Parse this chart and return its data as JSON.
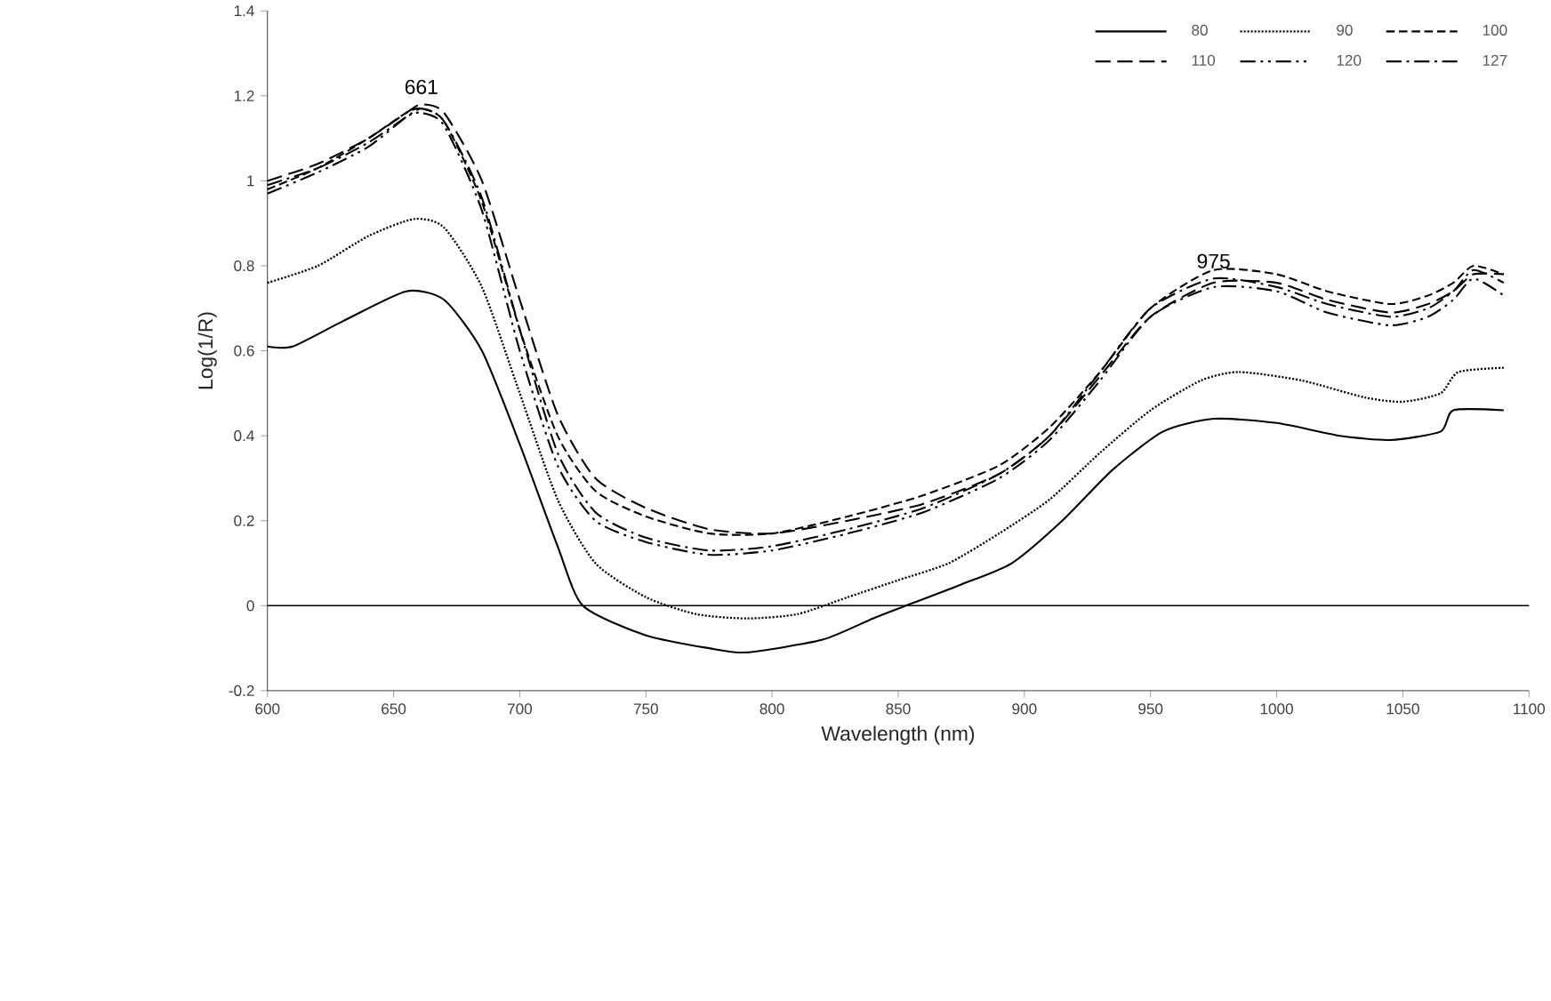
{
  "chart_data": {
    "type": "line",
    "xlabel": "Wavelength (nm)",
    "ylabel": "Log(1/R)",
    "xlim": [
      600,
      1100
    ],
    "xticks": [
      600,
      650,
      700,
      750,
      800,
      850,
      900,
      950,
      1000,
      1050,
      1100
    ],
    "ylim": [
      -0.2,
      1.4
    ],
    "yticks": [
      -0.2,
      0,
      0.2,
      0.4,
      0.6,
      0.8,
      1,
      1.2,
      1.4
    ],
    "grid": false,
    "legend": "top right",
    "ref_lines": [
      {
        "axis": "y",
        "value": 0
      }
    ],
    "annotations": [
      {
        "text": "661",
        "x": 661,
        "y": 1.17
      },
      {
        "text": "975",
        "x": 975,
        "y": 0.76
      }
    ],
    "series": [
      {
        "name": "80",
        "color": "#000000",
        "line_style": "solid",
        "x": [
          600,
          610,
          630,
          655,
          670,
          685,
          700,
          715,
          725,
          750,
          775,
          790,
          820,
          840,
          853,
          875,
          895,
          915,
          935,
          955,
          975,
          1000,
          1025,
          1045,
          1065,
          1070,
          1090
        ],
        "values": [
          0.61,
          0.61,
          0.67,
          0.74,
          0.72,
          0.6,
          0.38,
          0.14,
          0,
          -0.07,
          -0.1,
          -0.11,
          -0.08,
          -0.03,
          0,
          0.05,
          0.1,
          0.2,
          0.32,
          0.41,
          0.44,
          0.43,
          0.4,
          0.39,
          0.41,
          0.46,
          0.46
        ]
      },
      {
        "name": "90",
        "color": "#000000",
        "line_style": "dotted",
        "x": [
          600,
          620,
          640,
          658,
          670,
          685,
          700,
          715,
          730,
          750,
          770,
          790,
          810,
          830,
          850,
          870,
          890,
          910,
          930,
          950,
          970,
          985,
          1010,
          1035,
          1050,
          1065,
          1072,
          1090
        ],
        "values": [
          0.76,
          0.8,
          0.87,
          0.91,
          0.89,
          0.75,
          0.5,
          0.25,
          0.1,
          0.02,
          -0.02,
          -0.03,
          -0.02,
          0.02,
          0.06,
          0.1,
          0.17,
          0.25,
          0.36,
          0.46,
          0.53,
          0.55,
          0.53,
          0.49,
          0.48,
          0.5,
          0.55,
          0.56
        ]
      },
      {
        "name": "100",
        "color": "#000000",
        "line_style": "dashed",
        "x": [
          600,
          620,
          640,
          655,
          661,
          670,
          685,
          700,
          715,
          730,
          750,
          775,
          800,
          830,
          860,
          890,
          910,
          930,
          950,
          975,
          1000,
          1020,
          1045,
          1060,
          1070,
          1078,
          1090
        ],
        "values": [
          0.98,
          1.03,
          1.1,
          1.16,
          1.17,
          1.14,
          0.95,
          0.65,
          0.4,
          0.27,
          0.21,
          0.17,
          0.17,
          0.21,
          0.26,
          0.33,
          0.42,
          0.55,
          0.7,
          0.79,
          0.78,
          0.74,
          0.71,
          0.73,
          0.76,
          0.8,
          0.78
        ]
      },
      {
        "name": "110",
        "color": "#000000",
        "line_style": "longdashed",
        "x": [
          600,
          620,
          640,
          655,
          661,
          670,
          685,
          700,
          715,
          730,
          750,
          775,
          800,
          830,
          860,
          890,
          910,
          930,
          950,
          975,
          1000,
          1020,
          1045,
          1060,
          1070,
          1078,
          1090
        ],
        "values": [
          1.0,
          1.04,
          1.1,
          1.16,
          1.18,
          1.16,
          1.0,
          0.72,
          0.45,
          0.3,
          0.23,
          0.18,
          0.17,
          0.2,
          0.24,
          0.31,
          0.4,
          0.54,
          0.68,
          0.76,
          0.76,
          0.72,
          0.69,
          0.71,
          0.74,
          0.78,
          0.78
        ]
      },
      {
        "name": "120",
        "color": "#000000",
        "line_style": "dashdotdot",
        "x": [
          600,
          620,
          640,
          655,
          661,
          670,
          685,
          700,
          715,
          730,
          750,
          775,
          800,
          830,
          860,
          890,
          910,
          930,
          950,
          975,
          1000,
          1020,
          1045,
          1060,
          1070,
          1078,
          1090
        ],
        "values": [
          0.97,
          1.02,
          1.08,
          1.15,
          1.16,
          1.13,
          0.93,
          0.6,
          0.33,
          0.2,
          0.15,
          0.12,
          0.13,
          0.17,
          0.22,
          0.3,
          0.39,
          0.53,
          0.68,
          0.75,
          0.74,
          0.69,
          0.66,
          0.68,
          0.72,
          0.77,
          0.73
        ]
      },
      {
        "name": "127",
        "color": "#000000",
        "line_style": "dashdot",
        "x": [
          600,
          620,
          640,
          655,
          661,
          670,
          685,
          700,
          715,
          730,
          750,
          775,
          800,
          830,
          860,
          890,
          910,
          930,
          950,
          975,
          1000,
          1020,
          1045,
          1060,
          1070,
          1078,
          1090
        ],
        "values": [
          0.99,
          1.03,
          1.09,
          1.15,
          1.17,
          1.14,
          0.96,
          0.65,
          0.36,
          0.22,
          0.16,
          0.13,
          0.14,
          0.18,
          0.23,
          0.31,
          0.4,
          0.55,
          0.7,
          0.77,
          0.75,
          0.71,
          0.68,
          0.7,
          0.74,
          0.79,
          0.76
        ]
      }
    ]
  }
}
